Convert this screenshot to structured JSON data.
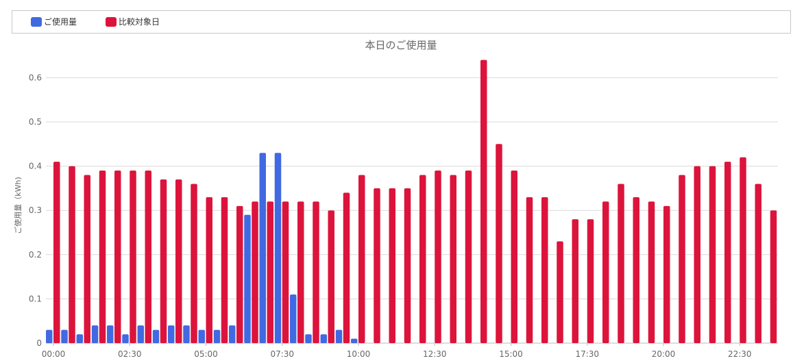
{
  "chart_data": {
    "type": "bar",
    "title": "本日のご使用量",
    "ylabel": "ご使用量（kWh)",
    "xlabel": "",
    "ylim": [
      0,
      0.65
    ],
    "yticks": [
      "0",
      "0.1",
      "0.2",
      "0.3",
      "0.4",
      "0.5",
      "0.6"
    ],
    "grid": true,
    "legend_position": "top",
    "x_tick_labels": [
      "00:00",
      "02:30",
      "05:00",
      "07:30",
      "10:00",
      "12:30",
      "15:00",
      "17:30",
      "20:00",
      "22:30"
    ],
    "x_tick_every": 5,
    "categories": [
      "00:00",
      "00:30",
      "01:00",
      "01:30",
      "02:00",
      "02:30",
      "03:00",
      "03:30",
      "04:00",
      "04:30",
      "05:00",
      "05:30",
      "06:00",
      "06:30",
      "07:00",
      "07:30",
      "08:00",
      "08:30",
      "09:00",
      "09:30",
      "10:00",
      "10:30",
      "11:00",
      "11:30",
      "12:00",
      "12:30",
      "13:00",
      "13:30",
      "14:00",
      "14:30",
      "15:00",
      "15:30",
      "16:00",
      "16:30",
      "17:00",
      "17:30",
      "18:00",
      "18:30",
      "19:00",
      "19:30",
      "20:00",
      "20:30",
      "21:00",
      "21:30",
      "22:00",
      "22:30",
      "23:00",
      "23:30"
    ],
    "series": [
      {
        "name": "ご使用量",
        "color": "#4169e1",
        "values": [
          0.03,
          0.03,
          0.02,
          0.04,
          0.04,
          0.02,
          0.04,
          0.03,
          0.04,
          0.04,
          0.03,
          0.03,
          0.04,
          0.29,
          0.43,
          0.43,
          0.11,
          0.02,
          0.02,
          0.03,
          0.01,
          null,
          null,
          null,
          null,
          null,
          null,
          null,
          null,
          null,
          null,
          null,
          null,
          null,
          null,
          null,
          null,
          null,
          null,
          null,
          null,
          null,
          null,
          null,
          null,
          null,
          null,
          null
        ]
      },
      {
        "name": "比較対象日",
        "color": "#dc143c",
        "values": [
          0.41,
          0.4,
          0.38,
          0.39,
          0.39,
          0.39,
          0.39,
          0.37,
          0.37,
          0.36,
          0.33,
          0.33,
          0.31,
          0.32,
          0.32,
          0.32,
          0.32,
          0.32,
          0.3,
          0.34,
          0.38,
          0.35,
          0.35,
          0.35,
          0.38,
          0.39,
          0.38,
          0.39,
          0.64,
          0.45,
          0.39,
          0.33,
          0.33,
          0.23,
          0.28,
          0.28,
          0.32,
          0.36,
          0.33,
          0.32,
          0.31,
          0.38,
          0.4,
          0.4,
          0.41,
          0.42,
          0.36,
          0.3
        ]
      }
    ]
  }
}
